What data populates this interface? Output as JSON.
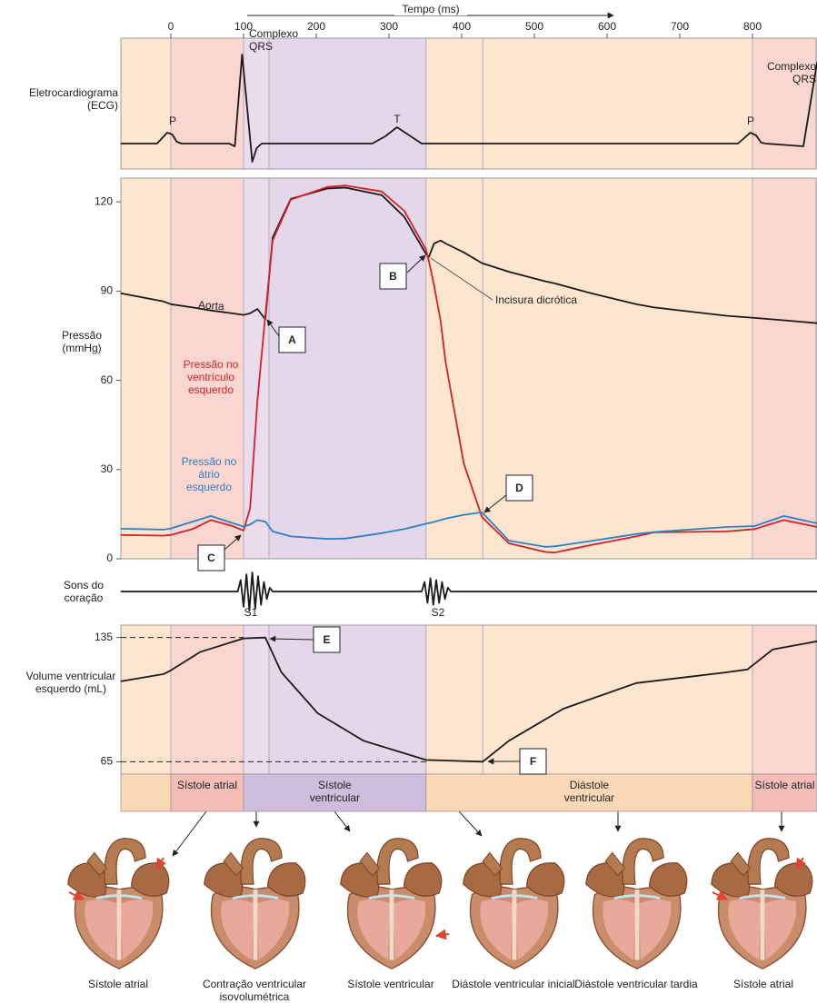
{
  "time_axis": {
    "label": "Tempo (ms)",
    "xlim": [
      -69,
      889
    ],
    "xticks": [
      0,
      100,
      200,
      300,
      400,
      500,
      600,
      700,
      800
    ]
  },
  "events": [
    0,
    100,
    135,
    351,
    429,
    800
  ],
  "phases": [
    {
      "start": -69,
      "end": 0,
      "color": "#fce6d0"
    },
    {
      "start": 0,
      "end": 100,
      "color": "#f9d6cf"
    },
    {
      "start": 100,
      "end": 135,
      "color": "#ebdcec"
    },
    {
      "start": 135,
      "end": 351,
      "color": "#e4d7ea"
    },
    {
      "start": 351,
      "end": 800,
      "color": "#fce6d0"
    },
    {
      "start": 800,
      "end": 889,
      "color": "#f9d6cf"
    }
  ],
  "phase_bar": [
    {
      "start": -69,
      "end": 0,
      "label": null,
      "color": "#fbd9b6"
    },
    {
      "start": 0,
      "end": 100,
      "label": "Sístole atrial",
      "color": "#f4bdb5"
    },
    {
      "start": 100,
      "end": 351,
      "label": "Sístole ventricular",
      "color": "#cfbddd"
    },
    {
      "start": 351,
      "end": 800,
      "label": "Diástole ventricular",
      "color": "#fbd9b6"
    },
    {
      "start": 800,
      "end": 889,
      "label": "Sístole atrial",
      "color": "#f4bdb5"
    }
  ],
  "chart_data": [
    {
      "type": "line",
      "ylabel": "Eletrocardiograma (ECG)",
      "ylim": [
        -2.8,
        11.6
      ],
      "x": [
        -69,
        -19,
        -12,
        -5,
        2,
        8,
        15,
        80,
        88,
        98,
        112,
        118,
        125,
        277,
        295,
        311,
        328,
        345,
        780,
        790,
        797,
        805,
        812,
        818,
        870,
        889
      ],
      "series": [
        {
          "color": "#1a1a1a",
          "values": [
            0,
            0,
            0.6,
            1.2,
            1.0,
            0.2,
            0,
            0,
            -0.3,
            9.8,
            -2,
            -0.5,
            0,
            0,
            0.8,
            1.8,
            0.9,
            0,
            0,
            0.7,
            1.2,
            0.9,
            0.1,
            0,
            -0.3,
            9
          ]
        }
      ],
      "annotations": [
        "P",
        "Complexo QRS",
        "T",
        "P",
        "Complexo QRS"
      ]
    },
    {
      "type": "line",
      "ylabel": "Pressão (mmHg)",
      "ylim": [
        0,
        128
      ],
      "yticks": [
        0,
        30,
        60,
        90,
        120
      ],
      "x": [
        -69,
        -10,
        0,
        30,
        55,
        85,
        100,
        109,
        119,
        130,
        140,
        165,
        215,
        240,
        290,
        321,
        351,
        355,
        362,
        371,
        378,
        403,
        428,
        465,
        515,
        528,
        578,
        640,
        665,
        765,
        803,
        843,
        889
      ],
      "series": [
        {
          "name": "Aorta",
          "color": "#1a1a1a",
          "values": [
            89.3,
            86.5,
            85.6,
            84.5,
            83.5,
            82.5,
            82,
            82.5,
            84,
            80.5,
            108,
            121,
            124.5,
            124.8,
            122.3,
            115,
            102.5,
            101.5,
            106,
            107,
            106,
            103,
            99.4,
            96.5,
            93.3,
            92.6,
            89.3,
            85.6,
            84.5,
            81.7,
            81,
            80.2,
            79.2
          ]
        },
        {
          "name": "Pressão no ventrículo esquerdo",
          "color": "#d62028",
          "values": [
            8,
            7.8,
            8,
            10,
            13,
            11,
            9.5,
            17,
            53,
            82,
            107,
            120.8,
            125,
            125.5,
            123.5,
            117,
            104,
            100,
            92,
            80,
            66,
            32,
            14,
            5.2,
            2.3,
            2.1,
            4.6,
            7.5,
            8.9,
            9.2,
            10,
            13,
            10.7
          ]
        },
        {
          "name": "Pressão no átrio esquerdo",
          "color": "#2f7fc1",
          "values": [
            10.1,
            9.8,
            10.2,
            12.5,
            14.4,
            12,
            10.8,
            11.5,
            13,
            12.5,
            9.2,
            7.5,
            6.7,
            6.8,
            8.6,
            10,
            11.8,
            12,
            12.4,
            13,
            13.5,
            14.8,
            15.6,
            6.1,
            4,
            4.2,
            6,
            8.3,
            9,
            10.7,
            11,
            14.4,
            11.9
          ]
        }
      ],
      "annotations": [
        "A",
        "B",
        "C",
        "D",
        "Incisura dicrótica"
      ]
    },
    {
      "type": "line",
      "ylabel": "Sons do coração",
      "ylim": [
        -1,
        1
      ],
      "x": [
        -69,
        92,
        96,
        100,
        104,
        108,
        112,
        116,
        120,
        124,
        128,
        132,
        136,
        140,
        345,
        349,
        353,
        357,
        361,
        365,
        369,
        373,
        377,
        381,
        385,
        889
      ],
      "series": [
        {
          "color": "#1a1a1a",
          "values": [
            0,
            0,
            0.6,
            -0.8,
            0.9,
            -1,
            1,
            -0.9,
            0.8,
            -0.7,
            0.5,
            -0.4,
            0.2,
            0,
            0,
            0.5,
            -0.6,
            0.7,
            -0.7,
            0.6,
            -0.6,
            0.5,
            -0.4,
            0.2,
            0,
            0
          ]
        }
      ],
      "annotations": [
        "S1",
        "S2"
      ]
    },
    {
      "type": "line",
      "ylabel": "Volume ventricular esquerdo (mL)",
      "ylim": [
        58,
        142
      ],
      "yticks": [
        65,
        135
      ],
      "x": [
        -69,
        -10,
        0,
        40,
        100,
        130,
        152,
        202,
        265,
        351,
        429,
        465,
        540,
        640,
        765,
        793,
        828,
        889
      ],
      "series": [
        {
          "color": "#1a1a1a",
          "values": [
            110.3,
            114.4,
            116.5,
            126.8,
            134.5,
            135,
            115.4,
            92.3,
            76.8,
            66,
            65,
            76.8,
            94.9,
            109.3,
            115.4,
            117,
            128.3,
            132.9
          ]
        }
      ],
      "annotations": [
        "E",
        "F"
      ]
    }
  ],
  "hearts": [
    "Sístole atrial",
    "Contração ventricular isovolumétrica",
    "Sístole ventricular",
    "Diástole ventricular inicial",
    "Diástole ventricular tardia",
    "Sístole atrial"
  ]
}
